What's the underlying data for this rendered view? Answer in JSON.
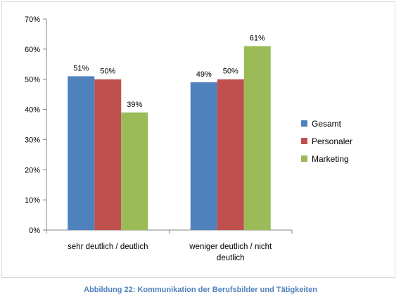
{
  "chart_data": {
    "type": "bar",
    "categories": [
      "sehr deutlich / deutlich",
      "weniger deutlich / nicht deutlich"
    ],
    "category_lines": [
      [
        "sehr deutlich / deutlich"
      ],
      [
        "weniger deutlich / nicht",
        "deutlich"
      ]
    ],
    "series": [
      {
        "name": "Gesamt",
        "values": [
          51,
          49
        ],
        "labels": [
          "51%",
          "49%"
        ],
        "color": "#4f81bd"
      },
      {
        "name": "Personaler",
        "values": [
          50,
          50
        ],
        "labels": [
          "50%",
          "50%"
        ],
        "color": "#c0504d"
      },
      {
        "name": "Marketing",
        "values": [
          39,
          61
        ],
        "labels": [
          "39%",
          "61%"
        ],
        "color": "#9bbb59"
      }
    ],
    "ylim": [
      0,
      70
    ],
    "yticks": [
      "0%",
      "10%",
      "20%",
      "30%",
      "40%",
      "50%",
      "60%",
      "70%"
    ],
    "grid": false,
    "legend_position": "right"
  },
  "caption": "Abbildung 22: Kommunikation der Berufsbilder und Tätigkeiten"
}
